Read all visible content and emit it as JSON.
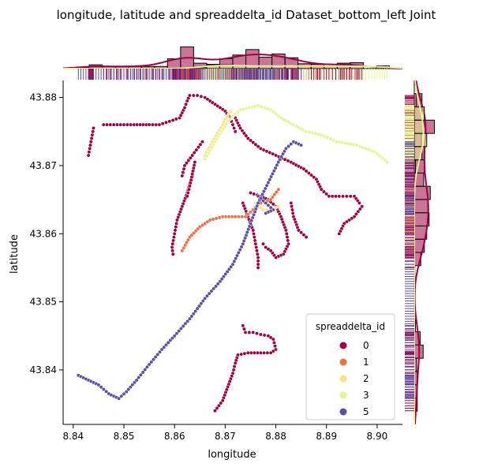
{
  "chart_data": {
    "type": "scatter",
    "title": "longitude, latitude and spreaddelta_id Dataset_bottom_left Joint",
    "xlabel": "longitude",
    "ylabel": "latitude",
    "xlim": [
      8.838,
      8.905
    ],
    "ylim": [
      43.832,
      43.8825
    ],
    "xticks": [
      8.84,
      8.85,
      8.86,
      8.87,
      8.88,
      8.89,
      8.9
    ],
    "xtick_labels": [
      "8.84",
      "8.85",
      "8.86",
      "8.87",
      "8.88",
      "8.89",
      "8.90"
    ],
    "yticks": [
      43.84,
      43.85,
      43.86,
      43.87,
      43.88
    ],
    "ytick_labels": [
      "43.84",
      "43.85",
      "43.86",
      "43.87",
      "43.88"
    ],
    "legend": {
      "title": "spreaddelta_id",
      "placement": "lower-right",
      "entries": [
        "0",
        "1",
        "2",
        "3",
        "5"
      ]
    },
    "colors": {
      "0": "#9e0142",
      "1": "#f46d43",
      "2": "#fee08b",
      "3": "#e6f598",
      "5": "#5e4fa2"
    },
    "series": [
      {
        "name": "0",
        "paths": [
          [
            [
              8.843,
              43.8715
            ],
            [
              8.8435,
              43.8735
            ],
            [
              8.844,
              43.8755
            ]
          ],
          [
            [
              8.846,
              43.876
            ],
            [
              8.848,
              43.876
            ],
            [
              8.85,
              43.876
            ],
            [
              8.852,
              43.876
            ],
            [
              8.855,
              43.876
            ],
            [
              8.857,
              43.876
            ],
            [
              8.859,
              43.8765
            ],
            [
              8.861,
              43.877
            ],
            [
              8.862,
              43.8785
            ],
            [
              8.8625,
              43.8795
            ],
            [
              8.863,
              43.8803
            ],
            [
              8.8645,
              43.8803
            ],
            [
              8.866,
              43.88
            ],
            [
              8.868,
              43.879
            ],
            [
              8.87,
              43.878
            ],
            [
              8.871,
              43.877
            ],
            [
              8.8715,
              43.876
            ],
            [
              8.872,
              43.875
            ]
          ],
          [
            [
              8.872,
              43.877
            ],
            [
              8.873,
              43.8755
            ],
            [
              8.8745,
              43.874
            ],
            [
              8.877,
              43.8725
            ],
            [
              8.88,
              43.8715
            ],
            [
              8.883,
              43.8705
            ],
            [
              8.8855,
              43.8695
            ],
            [
              8.888,
              43.868
            ],
            [
              8.889,
              43.8665
            ],
            [
              8.8905,
              43.8655
            ],
            [
              8.8925,
              43.8655
            ],
            [
              8.894,
              43.8655
            ],
            [
              8.8955,
              43.8655
            ],
            [
              8.8965,
              43.8645
            ],
            [
              8.897,
              43.864
            ],
            [
              8.8955,
              43.8625
            ],
            [
              8.8935,
              43.8615
            ],
            [
              8.8925,
              43.86
            ]
          ],
          [
            [
              8.8655,
              43.8735
            ],
            [
              8.8635,
              43.8715
            ],
            [
              8.862,
              43.87
            ],
            [
              8.8615,
              43.8685
            ]
          ],
          [
            [
              8.8635,
              43.8685
            ],
            [
              8.8625,
              43.866
            ],
            [
              8.8615,
              43.864
            ],
            [
              8.8605,
              43.862
            ],
            [
              8.86,
              43.86
            ],
            [
              8.8595,
              43.858
            ],
            [
              8.8597,
              43.857
            ]
          ],
          [
            [
              8.864,
              43.8705
            ],
            [
              8.863,
              43.867
            ],
            [
              8.8625,
              43.8655
            ]
          ],
          [
            [
              8.875,
              43.866
            ],
            [
              8.877,
              43.8655
            ],
            [
              8.8785,
              43.865
            ],
            [
              8.88,
              43.864
            ],
            [
              8.881,
              43.8625
            ],
            [
              8.882,
              43.8605
            ],
            [
              8.8825,
              43.8585
            ],
            [
              8.8815,
              43.857
            ],
            [
              8.88,
              43.8565
            ],
            [
              8.879,
              43.8575
            ],
            [
              8.878,
              43.858
            ],
            [
              8.8775,
              43.8585
            ]
          ],
          [
            [
              8.883,
              43.8645
            ],
            [
              8.8835,
              43.8625
            ],
            [
              8.8845,
              43.8605
            ],
            [
              8.886,
              43.8595
            ]
          ],
          [
            [
              8.8735,
              43.8645
            ],
            [
              8.8745,
              43.8625
            ],
            [
              8.8755,
              43.8605
            ],
            [
              8.876,
              43.8585
            ],
            [
              8.8765,
              43.8565
            ],
            [
              8.8765,
              43.855
            ]
          ],
          [
            [
              8.8735,
              43.8465
            ],
            [
              8.874,
              43.8455
            ],
            [
              8.8755,
              43.8455
            ],
            [
              8.877,
              43.8452
            ],
            [
              8.8785,
              43.845
            ],
            [
              8.8795,
              43.8445
            ],
            [
              8.88,
              43.843
            ],
            [
              8.879,
              43.8425
            ],
            [
              8.877,
              43.8425
            ],
            [
              8.8745,
              43.8425
            ],
            [
              8.8725,
              43.8422
            ],
            [
              8.872,
              43.841
            ],
            [
              8.8715,
              43.8395
            ],
            [
              8.8705,
              43.8375
            ],
            [
              8.8695,
              43.8355
            ],
            [
              8.868,
              43.834
            ]
          ]
        ]
      },
      {
        "name": "1",
        "paths": [
          [
            [
              8.8615,
              43.8575
            ],
            [
              8.863,
              43.8595
            ],
            [
              8.865,
              43.861
            ],
            [
              8.867,
              43.862
            ],
            [
              8.8695,
              43.8625
            ],
            [
              8.872,
              43.8625
            ],
            [
              8.874,
              43.8625
            ],
            [
              8.8755,
              43.8635
            ],
            [
              8.877,
              43.8645
            ],
            [
              8.879,
              43.865
            ],
            [
              8.8805,
              43.8665
            ]
          ]
        ]
      },
      {
        "name": "2",
        "paths": [
          [
            [
              8.866,
              43.8715
            ],
            [
              8.8675,
              43.8735
            ],
            [
              8.8695,
              43.876
            ],
            [
              8.871,
              43.878
            ]
          ],
          [
            [
              8.876,
              43.8645
            ],
            [
              8.8775,
              43.8635
            ],
            [
              8.879,
              43.8635
            ],
            [
              8.8805,
              43.864
            ]
          ]
        ]
      },
      {
        "name": "3",
        "paths": [
          [
            [
              8.866,
              43.871
            ],
            [
              8.868,
              43.8735
            ],
            [
              8.8705,
              43.8765
            ],
            [
              8.873,
              43.8782
            ],
            [
              8.8765,
              43.8788
            ],
            [
              8.879,
              43.8782
            ],
            [
              8.881,
              43.877
            ],
            [
              8.8835,
              43.876
            ],
            [
              8.886,
              43.875
            ],
            [
              8.889,
              43.8745
            ],
            [
              8.892,
              43.8735
            ],
            [
              8.896,
              43.873
            ],
            [
              8.8995,
              43.872
            ],
            [
              8.902,
              43.8705
            ]
          ]
        ]
      },
      {
        "name": "5",
        "paths": [
          [
            [
              8.841,
              43.8392
            ],
            [
              8.843,
              43.8385
            ],
            [
              8.845,
              43.8378
            ],
            [
              8.847,
              43.8365
            ],
            [
              8.849,
              43.8358
            ],
            [
              8.8505,
              43.8368
            ],
            [
              8.8525,
              43.8385
            ],
            [
              8.855,
              43.8408
            ],
            [
              8.8575,
              43.843
            ],
            [
              8.86,
              43.845
            ],
            [
              8.863,
              43.8475
            ],
            [
              8.866,
              43.8505
            ],
            [
              8.869,
              43.853
            ],
            [
              8.8715,
              43.8555
            ],
            [
              8.8735,
              43.8585
            ],
            [
              8.875,
              43.8615
            ],
            [
              8.8765,
              43.8645
            ],
            [
              8.8785,
              43.8675
            ],
            [
              8.8805,
              43.8705
            ],
            [
              8.882,
              43.8725
            ],
            [
              8.8835,
              43.8735
            ],
            [
              8.885,
              43.873
            ]
          ],
          [
            [
              8.8765,
              43.8655
            ],
            [
              8.878,
              43.8645
            ],
            [
              8.8795,
              43.8635
            ],
            [
              8.878,
              43.863
            ]
          ]
        ]
      }
    ]
  }
}
